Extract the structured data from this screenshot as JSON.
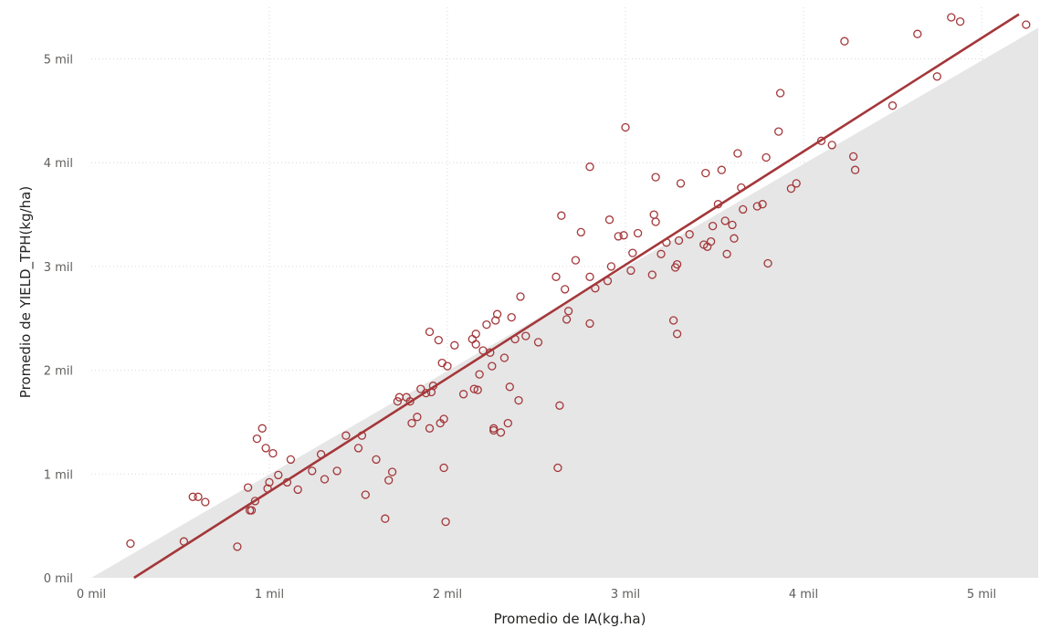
{
  "chart_data": {
    "type": "scatter",
    "xlabel": "Promedio de IA(kg.ha)",
    "ylabel": "Promedio de YIELD_TPH(kg/ha)",
    "xlim": [
      0,
      5300
    ],
    "ylim": [
      0,
      5500
    ],
    "x_ticks": [
      {
        "value": 0,
        "label": "0 mil"
      },
      {
        "value": 1000,
        "label": "1 mil"
      },
      {
        "value": 2000,
        "label": "2 mil"
      },
      {
        "value": 3000,
        "label": "3 mil"
      },
      {
        "value": 4000,
        "label": "4 mil"
      },
      {
        "value": 5000,
        "label": "5 mil"
      }
    ],
    "y_ticks": [
      {
        "value": 0,
        "label": "0 mil"
      },
      {
        "value": 1000,
        "label": "1 mil"
      },
      {
        "value": 2000,
        "label": "2 mil"
      },
      {
        "value": 3000,
        "label": "3 mil"
      },
      {
        "value": 4000,
        "label": "4 mil"
      },
      {
        "value": 5000,
        "label": "5 mil"
      }
    ],
    "grid": true,
    "point_color": "#a4373a",
    "trend_color": "#a4373a",
    "shade_color": "#e6e6e6",
    "shaded_region": "below y = x",
    "trend_line": {
      "x_start": 240,
      "x_end": 5210,
      "y_start": 0,
      "y_end": 5430
    },
    "points": [
      [
        220,
        330
      ],
      [
        520,
        350
      ],
      [
        570,
        780
      ],
      [
        600,
        780
      ],
      [
        640,
        730
      ],
      [
        820,
        300
      ],
      [
        880,
        870
      ],
      [
        890,
        650
      ],
      [
        900,
        650
      ],
      [
        920,
        740
      ],
      [
        930,
        1340
      ],
      [
        960,
        1440
      ],
      [
        980,
        1250
      ],
      [
        990,
        860
      ],
      [
        1000,
        920
      ],
      [
        1020,
        1200
      ],
      [
        1050,
        990
      ],
      [
        1100,
        920
      ],
      [
        1120,
        1140
      ],
      [
        1160,
        850
      ],
      [
        1240,
        1030
      ],
      [
        1290,
        1190
      ],
      [
        1310,
        950
      ],
      [
        1380,
        1030
      ],
      [
        1430,
        1370
      ],
      [
        1500,
        1250
      ],
      [
        1520,
        1370
      ],
      [
        1540,
        800
      ],
      [
        1600,
        1140
      ],
      [
        1650,
        570
      ],
      [
        1670,
        940
      ],
      [
        1690,
        1020
      ],
      [
        1720,
        1700
      ],
      [
        1730,
        1740
      ],
      [
        1770,
        1740
      ],
      [
        1790,
        1700
      ],
      [
        1800,
        1490
      ],
      [
        1830,
        1550
      ],
      [
        1850,
        1820
      ],
      [
        1880,
        1780
      ],
      [
        1900,
        2370
      ],
      [
        1900,
        1440
      ],
      [
        1910,
        1790
      ],
      [
        1920,
        1850
      ],
      [
        1950,
        2290
      ],
      [
        1960,
        1490
      ],
      [
        1970,
        2070
      ],
      [
        1980,
        1060
      ],
      [
        1980,
        1530
      ],
      [
        1990,
        540
      ],
      [
        2000,
        2040
      ],
      [
        2040,
        2240
      ],
      [
        2090,
        1770
      ],
      [
        2140,
        2300
      ],
      [
        2150,
        1820
      ],
      [
        2160,
        2350
      ],
      [
        2160,
        2250
      ],
      [
        2170,
        1810
      ],
      [
        2180,
        1960
      ],
      [
        2200,
        2190
      ],
      [
        2220,
        2440
      ],
      [
        2240,
        2170
      ],
      [
        2250,
        2040
      ],
      [
        2260,
        1440
      ],
      [
        2260,
        1420
      ],
      [
        2270,
        2480
      ],
      [
        2280,
        2540
      ],
      [
        2300,
        1400
      ],
      [
        2320,
        2120
      ],
      [
        2340,
        1490
      ],
      [
        2350,
        1840
      ],
      [
        2360,
        2510
      ],
      [
        2380,
        2300
      ],
      [
        2400,
        1710
      ],
      [
        2410,
        2710
      ],
      [
        2440,
        2330
      ],
      [
        2510,
        2270
      ],
      [
        2610,
        2900
      ],
      [
        2620,
        1060
      ],
      [
        2630,
        1660
      ],
      [
        2640,
        3490
      ],
      [
        2660,
        2780
      ],
      [
        2670,
        2490
      ],
      [
        2680,
        2570
      ],
      [
        2720,
        3060
      ],
      [
        2750,
        3330
      ],
      [
        2800,
        2900
      ],
      [
        2800,
        3960
      ],
      [
        2800,
        2450
      ],
      [
        2830,
        2790
      ],
      [
        2900,
        2860
      ],
      [
        2910,
        3450
      ],
      [
        2920,
        3000
      ],
      [
        2960,
        3290
      ],
      [
        2990,
        3300
      ],
      [
        3000,
        4340
      ],
      [
        3030,
        2960
      ],
      [
        3040,
        3130
      ],
      [
        3070,
        3320
      ],
      [
        3150,
        2920
      ],
      [
        3160,
        3500
      ],
      [
        3170,
        3430
      ],
      [
        3170,
        3860
      ],
      [
        3200,
        3120
      ],
      [
        3230,
        3230
      ],
      [
        3270,
        2480
      ],
      [
        3280,
        2990
      ],
      [
        3290,
        2350
      ],
      [
        3290,
        3020
      ],
      [
        3300,
        3250
      ],
      [
        3310,
        3800
      ],
      [
        3360,
        3310
      ],
      [
        3440,
        3210
      ],
      [
        3450,
        3900
      ],
      [
        3460,
        3190
      ],
      [
        3480,
        3240
      ],
      [
        3490,
        3390
      ],
      [
        3520,
        3600
      ],
      [
        3540,
        3930
      ],
      [
        3560,
        3440
      ],
      [
        3570,
        3120
      ],
      [
        3600,
        3400
      ],
      [
        3610,
        3270
      ],
      [
        3630,
        4090
      ],
      [
        3650,
        3760
      ],
      [
        3660,
        3550
      ],
      [
        3740,
        3580
      ],
      [
        3770,
        3600
      ],
      [
        3790,
        4050
      ],
      [
        3800,
        3030
      ],
      [
        3860,
        4300
      ],
      [
        3870,
        4670
      ],
      [
        3930,
        3750
      ],
      [
        3960,
        3800
      ],
      [
        4100,
        4210
      ],
      [
        4160,
        4170
      ],
      [
        4230,
        5170
      ],
      [
        4280,
        4060
      ],
      [
        4290,
        3930
      ],
      [
        4500,
        4550
      ],
      [
        4640,
        5240
      ],
      [
        4750,
        4830
      ],
      [
        4830,
        5400
      ],
      [
        4880,
        5360
      ],
      [
        5250,
        5330
      ]
    ]
  }
}
